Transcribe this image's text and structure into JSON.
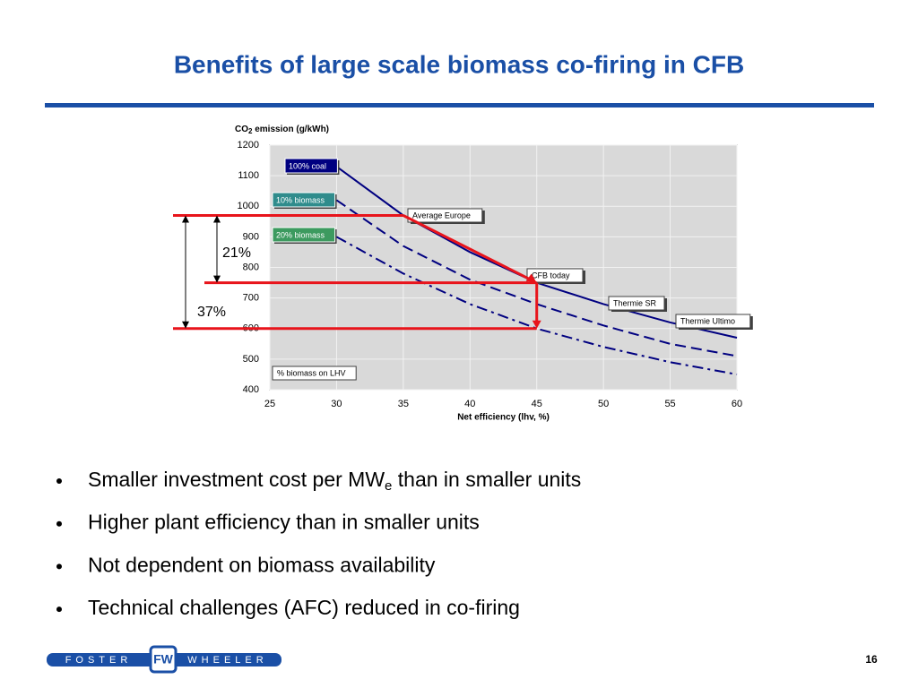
{
  "header": {
    "title": "Benefits of large scale biomass co-firing in CFB"
  },
  "chart_data": {
    "type": "line",
    "y_label": {
      "main": "CO",
      "sub": "2",
      "tail": " emission (g/kWh)"
    },
    "x_label": "Net efficiency (lhv, %)",
    "x": [
      30,
      35,
      40,
      45,
      50,
      55,
      60
    ],
    "series": [
      {
        "name": "100% coal",
        "color": "#000080",
        "dash": "solid",
        "label_color": "#000080",
        "values": [
          1130,
          970,
          850,
          750,
          680,
          620,
          570
        ]
      },
      {
        "name": "10% biomass",
        "color": "#000080",
        "dash": "dashed",
        "label_color": "#2f8c8c",
        "values": [
          1020,
          870,
          760,
          680,
          610,
          550,
          510
        ]
      },
      {
        "name": "20% biomass",
        "color": "#000080",
        "dash": "dashdot",
        "label_color": "#3c9a5f",
        "values": [
          900,
          780,
          680,
          600,
          540,
          490,
          450
        ]
      }
    ],
    "xlim": [
      25,
      60
    ],
    "xticks": [
      25,
      30,
      35,
      40,
      45,
      50,
      55,
      60
    ],
    "ylim": [
      400,
      1200
    ],
    "yticks": [
      400,
      500,
      600,
      700,
      800,
      900,
      1000,
      1100,
      1200
    ],
    "grid": true,
    "annotations": [
      "Average Europe",
      "CFB  today",
      "Thermie SR",
      "Thermie Ultimo",
      "% biomass on LHV"
    ],
    "reductions": [
      "21%",
      "37%"
    ]
  },
  "bullets": [
    {
      "text": "Smaller investment cost per MW",
      "sub": "e",
      "tail": " than in smaller units"
    },
    {
      "text": "Higher plant efficiency than in smaller units"
    },
    {
      "text": "Not dependent on biomass availability"
    },
    {
      "text": "Technical challenges (AFC) reduced in co-firing"
    }
  ],
  "footer": {
    "logo_left": "FOSTER",
    "logo_right": "WHEELER",
    "page": "16"
  }
}
